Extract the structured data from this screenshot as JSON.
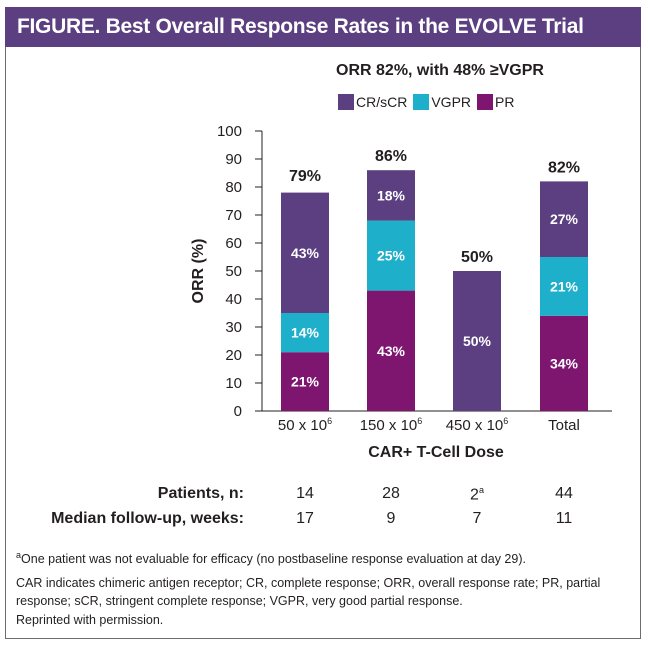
{
  "header": {
    "title": "FIGURE. Best Overall Response Rates in the EVOLVE Trial"
  },
  "chart_data": {
    "type": "bar",
    "stacked": true,
    "title": "ORR 82%, with 48% ≥VGPR",
    "xlabel": "CAR+ T-Cell Dose",
    "ylabel": "ORR (%)",
    "ylim": [
      0,
      100
    ],
    "yticks": [
      "0",
      "10",
      "20",
      "30",
      "40",
      "50",
      "60",
      "70",
      "80",
      "90",
      "100"
    ],
    "categories": [
      {
        "base": "50 x 10",
        "sup": "6"
      },
      {
        "base": "150 x 10",
        "sup": "6"
      },
      {
        "base": "450 x 10",
        "sup": "6"
      },
      {
        "base": "Total",
        "sup": ""
      }
    ],
    "series": [
      {
        "name": "PR",
        "color": "#7e1670",
        "values": [
          21,
          43,
          0,
          34
        ],
        "labels": [
          "21%",
          "43%",
          "",
          "34%"
        ]
      },
      {
        "name": "VGPR",
        "color": "#1eafcb",
        "values": [
          14,
          25,
          0,
          21
        ],
        "labels": [
          "14%",
          "25%",
          "",
          "21%"
        ]
      },
      {
        "name": "CR/sCR",
        "color": "#5b3f80",
        "values": [
          43,
          18,
          50,
          27
        ],
        "labels": [
          "43%",
          "18%",
          "50%",
          "27%"
        ]
      }
    ],
    "totals": [
      79,
      86,
      50,
      82
    ],
    "total_labels": [
      "79%",
      "86%",
      "50%",
      "82%"
    ],
    "legend": [
      {
        "name": "CR/sCR",
        "color": "#5b3f80"
      },
      {
        "name": "VGPR",
        "color": "#1eafcb"
      },
      {
        "name": "PR",
        "color": "#7e1670"
      }
    ],
    "legend_position": "top",
    "grid": false
  },
  "table": {
    "rows": [
      {
        "label": "Patients, n:",
        "values": [
          "14",
          "28",
          "2",
          "44"
        ],
        "sups": [
          "",
          "",
          "a",
          ""
        ]
      },
      {
        "label": "Median follow-up, weeks:",
        "values": [
          "17",
          "9",
          "7",
          "11"
        ],
        "sups": [
          "",
          "",
          "",
          ""
        ]
      }
    ]
  },
  "footnotes": {
    "a_marker": "a",
    "a_text": "One patient was not evaluable for efficacy (no postbaseline response evaluation at day 29).",
    "abbreviations": "CAR indicates chimeric antigen receptor; CR, complete response; ORR, overall response rate; PR, partial response; sCR, stringent complete response; VGPR, very good partial response.",
    "permission": "Reprinted with permission."
  }
}
